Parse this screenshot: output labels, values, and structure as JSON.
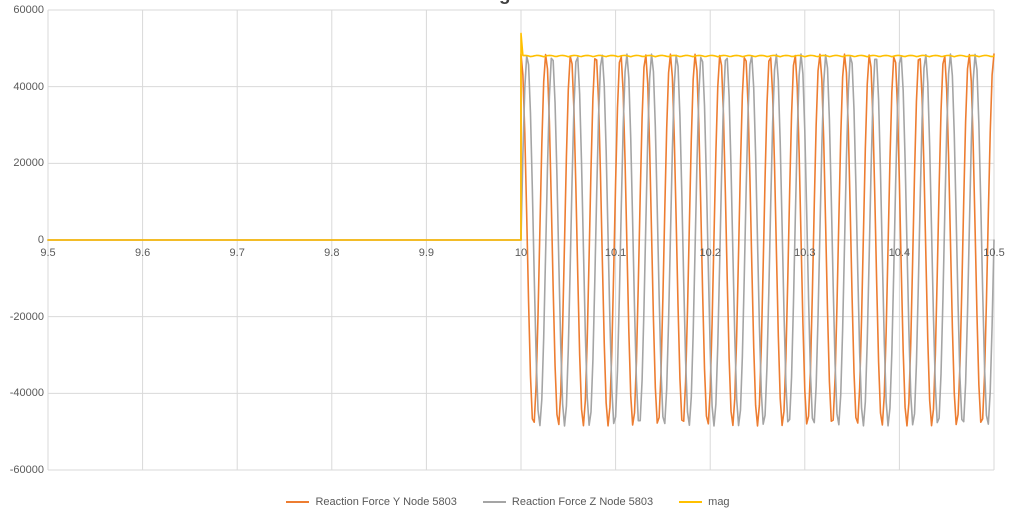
{
  "chart_data": {
    "type": "line",
    "title_fragment": "g",
    "left_clipped_label": "0",
    "xlabel": "",
    "ylabel": "",
    "xlim": [
      9.5,
      10.5
    ],
    "ylim": [
      -60000,
      60000
    ],
    "grid": true,
    "gridline_color": "#d9d9d9",
    "tick_color": "#595959",
    "xticks": [
      {
        "value": 9.5,
        "label": "9.5"
      },
      {
        "value": 9.6,
        "label": "9.6"
      },
      {
        "value": 9.7,
        "label": "9.7"
      },
      {
        "value": 9.8,
        "label": "9.8"
      },
      {
        "value": 9.9,
        "label": "9.9"
      },
      {
        "value": 10,
        "label": "10"
      },
      {
        "value": 10.1,
        "label": "10.1"
      },
      {
        "value": 10.2,
        "label": "10.2"
      },
      {
        "value": 10.3,
        "label": "10.3"
      },
      {
        "value": 10.4,
        "label": "10.4"
      },
      {
        "value": 10.5,
        "label": "10.5"
      }
    ],
    "yticks": [
      {
        "value": 60000,
        "label": "60000"
      },
      {
        "value": 40000,
        "label": "40000"
      },
      {
        "value": 20000,
        "label": "20000"
      },
      {
        "value": 0,
        "label": "0"
      },
      {
        "value": -20000,
        "label": "-20000"
      },
      {
        "value": -40000,
        "label": "-40000"
      },
      {
        "value": -60000,
        "label": "-60000"
      }
    ],
    "legend_position": "bottom",
    "series": [
      {
        "name": "Reaction Force Y Node 5803",
        "color": "#ED7D31",
        "shape": "sine-burst",
        "flat_value": 0,
        "flat_until": 10,
        "amplitude": 48500,
        "cycles_per_unit": 38,
        "phase_deg": 90,
        "range": [
          10,
          10.5
        ]
      },
      {
        "name": "Reaction Force Z Node 5803",
        "color": "#A5A5A5",
        "shape": "sine-burst",
        "flat_value": 0,
        "flat_until": 10,
        "amplitude": 48500,
        "cycles_per_unit": 38,
        "phase_deg": 0,
        "range": [
          10,
          10.5
        ]
      },
      {
        "name": "mag",
        "color": "#FFC000",
        "shape": "step-plateau",
        "flat_value": 0,
        "flat_until": 10,
        "spike_value": 53900,
        "plateau_value": 47800,
        "ripple": 350,
        "ripple_cycles_per_unit": 38,
        "range": [
          10,
          10.5
        ]
      }
    ]
  }
}
